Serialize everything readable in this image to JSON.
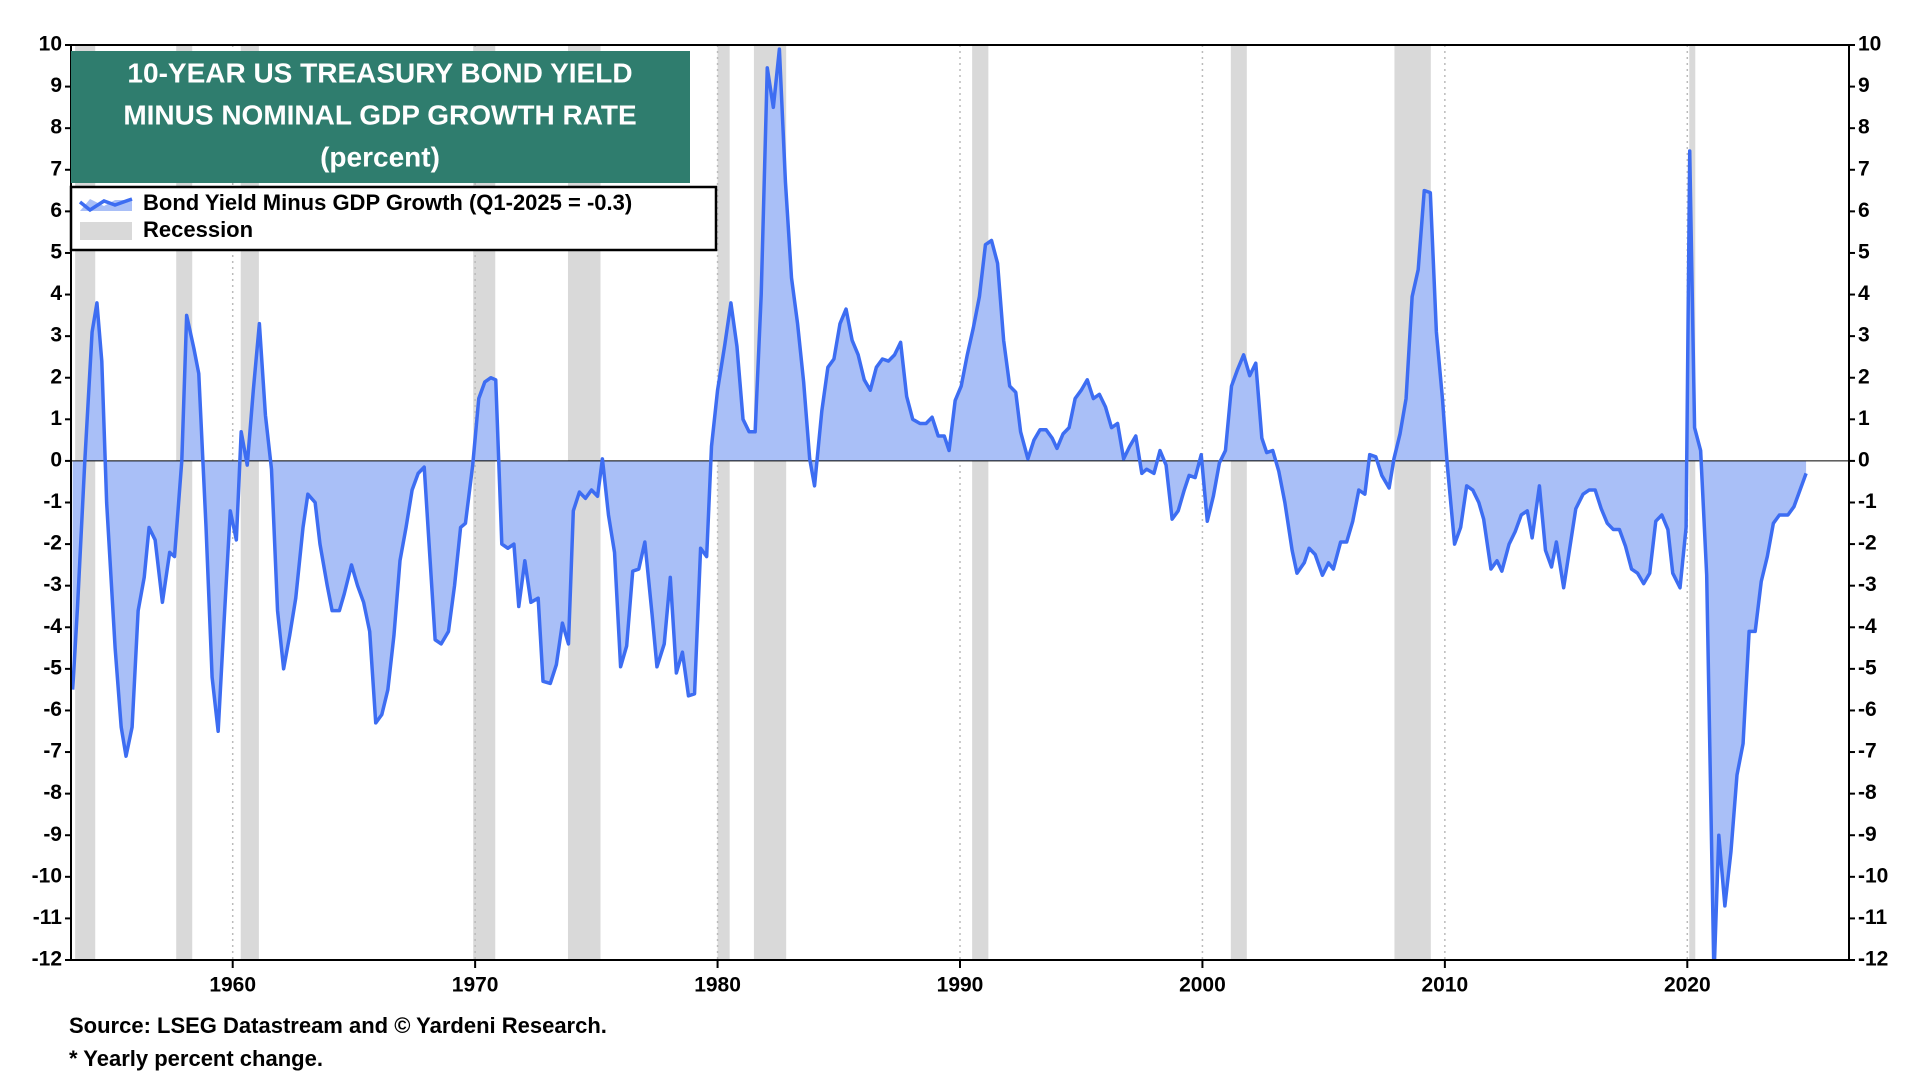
{
  "chart_data": {
    "type": "area",
    "title_lines": [
      "10-YEAR US TREASURY BOND YIELD",
      "MINUS NOMINAL GDP GROWTH RATE",
      "(percent)"
    ],
    "source": "Source: LSEG Datastream and © Yardeni Research.",
    "footnote": "* Yearly percent change.",
    "xlim": [
      1953.33,
      2026.67
    ],
    "xticks": [
      1960,
      1970,
      1980,
      1990,
      2000,
      2010,
      2020
    ],
    "ylim": [
      -12,
      10
    ],
    "yticks": [
      -12,
      -11,
      -10,
      -9,
      -8,
      -7,
      -6,
      -5,
      -4,
      -3,
      -2,
      -1,
      0,
      1,
      2,
      3,
      4,
      5,
      6,
      7,
      8,
      9,
      10
    ],
    "y2lim": [
      -12,
      10
    ],
    "y2ticks": [
      -12,
      -11,
      -10,
      -9,
      -8,
      -7,
      -6,
      -5,
      -4,
      -3,
      -2,
      -1,
      0,
      1,
      2,
      3,
      4,
      5,
      6,
      7,
      8,
      9,
      10
    ],
    "grid": "x",
    "legend": "top-left",
    "recessions": {
      "name": "Recession",
      "color": "#d9d9d9",
      "periods": [
        [
          1953.5,
          1954.33
        ],
        [
          1957.67,
          1958.33
        ],
        [
          1960.33,
          1961.08
        ],
        [
          1969.92,
          1970.83
        ],
        [
          1973.83,
          1975.17
        ],
        [
          1980.0,
          1980.5
        ],
        [
          1981.5,
          1982.83
        ],
        [
          1990.5,
          1991.17
        ],
        [
          2001.17,
          2001.83
        ],
        [
          2007.92,
          2009.42
        ],
        [
          2020.08,
          2020.33
        ]
      ]
    },
    "x": [
      1953.4,
      1953.6,
      1953.9,
      1954.2,
      1954.4,
      1954.6,
      1954.8,
      1955.15,
      1955.4,
      1955.6,
      1955.85,
      1956.1,
      1956.35,
      1956.55,
      1956.8,
      1957.1,
      1957.4,
      1957.6,
      1957.9,
      1958.1,
      1958.4,
      1958.6,
      1958.9,
      1959.15,
      1959.4,
      1959.65,
      1959.9,
      1960.15,
      1960.35,
      1960.6,
      1960.85,
      1961.1,
      1961.35,
      1961.6,
      1961.85,
      1962.1,
      1962.35,
      1962.6,
      1962.9,
      1963.1,
      1963.4,
      1963.6,
      1963.9,
      1964.1,
      1964.4,
      1964.6,
      1964.9,
      1965.15,
      1965.4,
      1965.65,
      1965.9,
      1966.15,
      1966.4,
      1966.65,
      1966.9,
      1967.15,
      1967.4,
      1967.65,
      1967.9,
      1968.1,
      1968.35,
      1968.6,
      1968.9,
      1969.15,
      1969.4,
      1969.6,
      1969.9,
      1970.15,
      1970.4,
      1970.65,
      1970.85,
      1971.1,
      1971.35,
      1971.6,
      1971.8,
      1972.05,
      1972.3,
      1972.6,
      1972.8,
      1973.1,
      1973.35,
      1973.6,
      1973.85,
      1974.05,
      1974.3,
      1974.55,
      1974.8,
      1975.05,
      1975.25,
      1975.5,
      1975.75,
      1976.0,
      1976.25,
      1976.5,
      1976.75,
      1977.0,
      1977.3,
      1977.5,
      1977.8,
      1978.05,
      1978.3,
      1978.55,
      1978.8,
      1979.05,
      1979.3,
      1979.55,
      1979.75,
      1980.0,
      1980.3,
      1980.55,
      1980.8,
      1981.05,
      1981.3,
      1981.55,
      1981.8,
      1982.05,
      1982.3,
      1982.55,
      1982.8,
      1983.05,
      1983.3,
      1983.55,
      1983.8,
      1984.0,
      1984.3,
      1984.55,
      1984.8,
      1985.05,
      1985.3,
      1985.55,
      1985.8,
      1986.05,
      1986.3,
      1986.55,
      1986.8,
      1987.05,
      1987.3,
      1987.55,
      1987.8,
      1988.05,
      1988.35,
      1988.6,
      1988.85,
      1989.1,
      1989.35,
      1989.55,
      1989.8,
      1990.05,
      1990.3,
      1990.55,
      1990.8,
      1991.05,
      1991.3,
      1991.55,
      1991.8,
      1992.05,
      1992.3,
      1992.5,
      1992.8,
      1993.05,
      1993.3,
      1993.55,
      1993.8,
      1994.0,
      1994.25,
      1994.5,
      1994.75,
      1995.0,
      1995.25,
      1995.5,
      1995.75,
      1996.0,
      1996.25,
      1996.5,
      1996.75,
      1997.0,
      1997.25,
      1997.5,
      1997.7,
      1998.0,
      1998.25,
      1998.5,
      1998.75,
      1999.0,
      1999.25,
      1999.45,
      1999.7,
      1999.95,
      2000.2,
      2000.45,
      2000.7,
      2000.95,
      2001.2,
      2001.45,
      2001.7,
      2001.95,
      2002.2,
      2002.45,
      2002.65,
      2002.9,
      2003.15,
      2003.4,
      2003.7,
      2003.9,
      2004.2,
      2004.4,
      2004.65,
      2004.95,
      2005.2,
      2005.4,
      2005.7,
      2005.95,
      2006.2,
      2006.45,
      2006.7,
      2006.9,
      2007.15,
      2007.4,
      2007.7,
      2007.9,
      2008.15,
      2008.4,
      2008.65,
      2008.9,
      2009.15,
      2009.4,
      2009.65,
      2009.9,
      2010.1,
      2010.4,
      2010.65,
      2010.9,
      2011.15,
      2011.4,
      2011.6,
      2011.9,
      2012.15,
      2012.35,
      2012.65,
      2012.9,
      2013.15,
      2013.4,
      2013.6,
      2013.9,
      2014.15,
      2014.4,
      2014.6,
      2014.9,
      2015.15,
      2015.4,
      2015.7,
      2015.95,
      2016.2,
      2016.45,
      2016.7,
      2016.95,
      2017.2,
      2017.45,
      2017.7,
      2017.95,
      2018.2,
      2018.45,
      2018.7,
      2018.95,
      2019.2,
      2019.4,
      2019.7,
      2019.95,
      2020.1,
      2020.3,
      2020.55,
      2020.8,
      2021.1,
      2021.3,
      2021.55,
      2021.8,
      2022.05,
      2022.3,
      2022.55,
      2022.8,
      2023.05,
      2023.3,
      2023.55,
      2023.8,
      2024.15,
      2024.4,
      2024.65,
      2024.9
    ],
    "series": [
      {
        "name": "Bond Yield Minus GDP Growth (Q1-2025 = -0.3)",
        "color": "#3d6df2",
        "fill": "#a9bff7",
        "values": [
          -5.5,
          -3.5,
          0,
          3.1,
          3.8,
          2.4,
          -1,
          -4.5,
          -6.4,
          -7.1,
          -6.4,
          -3.6,
          -2.8,
          -1.6,
          -1.9,
          -3.4,
          -2.2,
          -2.3,
          0,
          3.5,
          2.7,
          2.1,
          -1.6,
          -5.2,
          -6.5,
          -3.8,
          -1.2,
          -1.9,
          0.7,
          -0.1,
          1.7,
          3.3,
          1.1,
          -0.2,
          -3.6,
          -5.0,
          -4.2,
          -3.3,
          -1.6,
          -0.8,
          -1.0,
          -2.0,
          -3.0,
          -3.6,
          -3.6,
          -3.2,
          -2.5,
          -3.0,
          -3.4,
          -4.1,
          -6.3,
          -6.1,
          -5.5,
          -4.2,
          -2.4,
          -1.6,
          -0.7,
          -0.3,
          -0.15,
          -2.0,
          -4.3,
          -4.4,
          -4.1,
          -3.0,
          -1.6,
          -1.5,
          -0.1,
          1.5,
          1.9,
          2.0,
          1.95,
          -2.0,
          -2.1,
          -2.0,
          -3.5,
          -2.4,
          -3.4,
          -3.3,
          -5.3,
          -5.35,
          -4.9,
          -3.9,
          -4.4,
          -1.2,
          -0.75,
          -0.9,
          -0.7,
          -0.85,
          0.05,
          -1.3,
          -2.2,
          -4.95,
          -4.45,
          -2.65,
          -2.6,
          -1.95,
          -3.7,
          -4.95,
          -4.4,
          -2.8,
          -5.1,
          -4.6,
          -5.65,
          -5.6,
          -2.1,
          -2.3,
          0.35,
          1.7,
          2.8,
          3.8,
          2.75,
          1.0,
          0.7,
          0.7,
          4.0,
          9.45,
          8.5,
          9.9,
          6.7,
          4.4,
          3.3,
          1.9,
          0.05,
          -0.6,
          1.2,
          2.25,
          2.45,
          3.3,
          3.65,
          2.9,
          2.55,
          1.95,
          1.7,
          2.25,
          2.45,
          2.4,
          2.55,
          2.85,
          1.55,
          1.0,
          0.9,
          0.9,
          1.05,
          0.6,
          0.6,
          0.25,
          1.45,
          1.8,
          2.55,
          3.2,
          3.95,
          5.2,
          5.3,
          4.75,
          2.9,
          1.8,
          1.65,
          0.7,
          0.05,
          0.5,
          0.75,
          0.75,
          0.55,
          0.3,
          0.65,
          0.8,
          1.5,
          1.7,
          1.95,
          1.5,
          1.6,
          1.3,
          0.8,
          0.9,
          0.05,
          0.35,
          0.6,
          -0.3,
          -0.2,
          -0.3,
          0.25,
          -0.1,
          -1.4,
          -1.2,
          -0.7,
          -0.35,
          -0.4,
          0.15,
          -1.45,
          -0.85,
          -0.05,
          0.25,
          1.8,
          2.2,
          2.55,
          2.05,
          2.35,
          0.55,
          0.2,
          0.25,
          -0.25,
          -1.0,
          -2.15,
          -2.7,
          -2.45,
          -2.1,
          -2.25,
          -2.75,
          -2.45,
          -2.6,
          -1.95,
          -1.95,
          -1.45,
          -0.7,
          -0.8,
          0.15,
          0.1,
          -0.35,
          -0.65,
          0.05,
          0.65,
          1.5,
          3.95,
          4.6,
          6.5,
          6.45,
          3.1,
          1.5,
          -0.1,
          -2.0,
          -1.6,
          -0.6,
          -0.7,
          -1.0,
          -1.4,
          -2.6,
          -2.4,
          -2.65,
          -2.0,
          -1.7,
          -1.3,
          -1.2,
          -1.85,
          -0.6,
          -2.15,
          -2.55,
          -1.95,
          -3.05,
          -2.1,
          -1.15,
          -0.8,
          -0.7,
          -0.7,
          -1.15,
          -1.5,
          -1.65,
          -1.65,
          -2.05,
          -2.6,
          -2.7,
          -2.95,
          -2.7,
          -1.45,
          -1.3,
          -1.65,
          -2.7,
          -3.05,
          -1.6,
          7.45,
          0.8,
          0.25,
          -2.75,
          -12.4,
          -9.0,
          -10.7,
          -9.4,
          -7.55,
          -6.8,
          -4.1,
          -4.1,
          -2.9,
          -2.3,
          -1.5,
          -1.3,
          -1.3,
          -1.1,
          -0.7,
          -0.3
        ]
      }
    ]
  }
}
